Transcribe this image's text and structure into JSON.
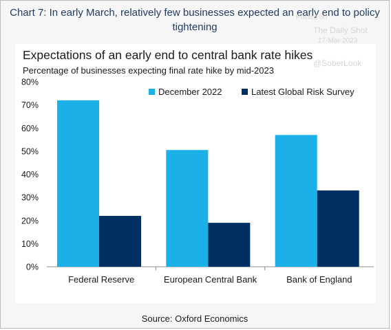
{
  "header": {
    "title_line1": "Chart 7: In early March, relatively few businesses expected an early end to policy",
    "title_line2": "tightening"
  },
  "watermark": {
    "posted": "Posted on",
    "name": "The Daily Shot",
    "date": "17-Mar-2023",
    "handle": "@SoberLook"
  },
  "footer": {
    "source": "Source: Oxford Economics"
  },
  "chart_data": {
    "type": "bar",
    "title": "Expectations of an early end to central bank rate hikes",
    "subtitle": "Percentage of businesses expecting final rate hike by mid-2023",
    "categories": [
      "Federal Reserve",
      "European Central Bank",
      "Bank of England"
    ],
    "series": [
      {
        "name": "December 2022",
        "color": "#1cb0e8",
        "values": [
          72,
          50.5,
          57
        ]
      },
      {
        "name": "Latest Global Risk Survey",
        "color": "#002f63",
        "values": [
          22,
          19,
          33
        ]
      }
    ],
    "ylim": [
      0,
      80
    ],
    "yticks": [
      "0%",
      "10%",
      "20%",
      "30%",
      "40%",
      "50%",
      "60%",
      "70%",
      "80%"
    ],
    "xlabel": "",
    "ylabel": "",
    "grid": false,
    "legend_position": "top-right"
  }
}
